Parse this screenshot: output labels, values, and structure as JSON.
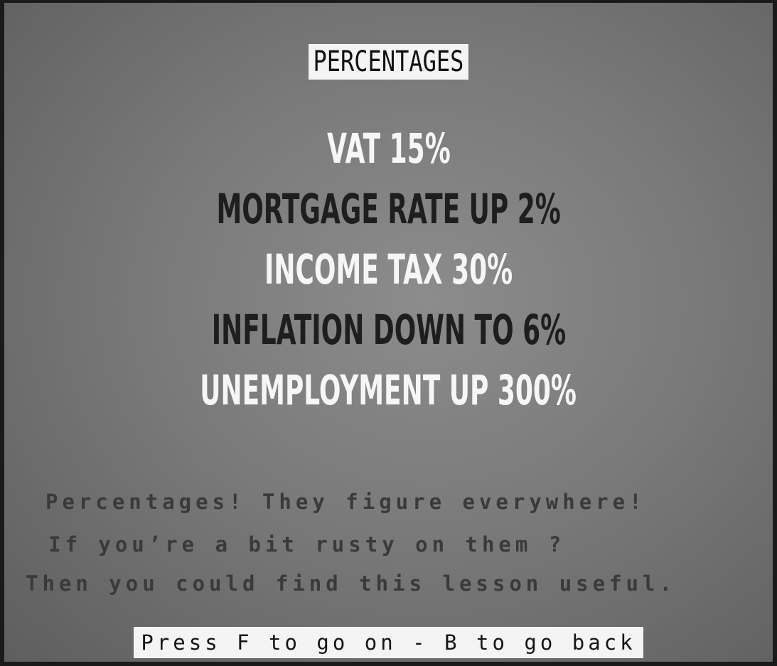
{
  "title": "PERCENTAGES",
  "headlines": [
    "VAT 15%",
    "MORTGAGE RATE UP 2%",
    "INCOME TAX 30%",
    "INFLATION DOWN TO 6%",
    "UNEMPLOYMENT UP 300%"
  ],
  "body_lines": [
    "Percentages! They figure everywhere!",
    "If you’re a bit rusty on them ?",
    "Then you could find this lesson useful."
  ],
  "footer": "Press F to go on - B to go back"
}
